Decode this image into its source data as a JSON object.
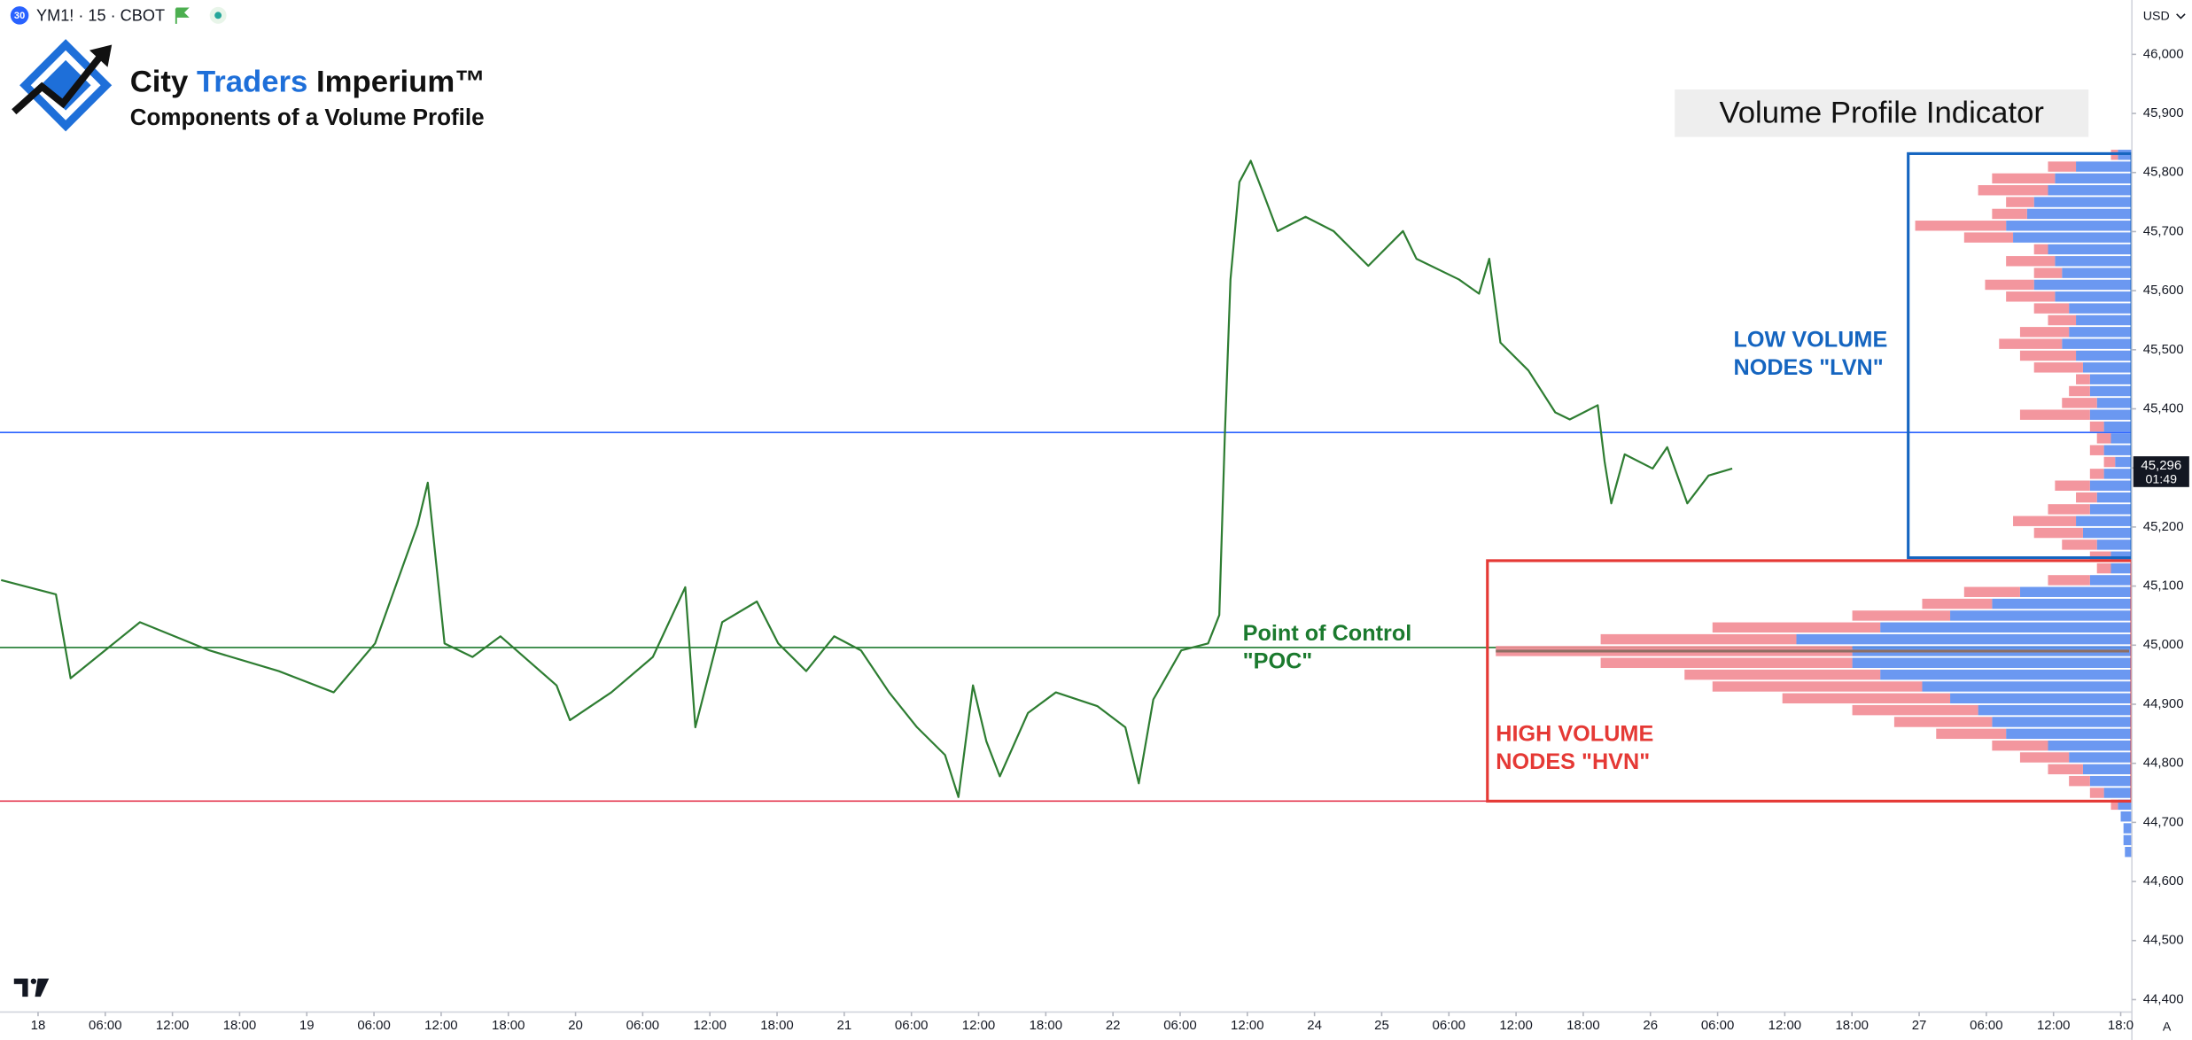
{
  "header": {
    "badge": "30",
    "symbol": "YM1! · 15 · CBOT",
    "brand_city": "City",
    "brand_traders": "Traders",
    "brand_imperium": "Imperium™",
    "subtitle": "Components of a Volume Profile",
    "currency": "USD",
    "scale_mode": "A"
  },
  "chart_data": {
    "type": "line",
    "title": "Volume Profile Indicator",
    "color": "#2e7d32",
    "grid": false,
    "xlim": [
      -3.4,
      187
    ],
    "ylim": [
      44379,
      46092
    ],
    "xticks": [
      {
        "value": 0,
        "label": "18"
      },
      {
        "value": 6,
        "label": "06:00"
      },
      {
        "value": 12,
        "label": "12:00"
      },
      {
        "value": 18,
        "label": "18:00"
      },
      {
        "value": 24,
        "label": "19"
      },
      {
        "value": 30,
        "label": "06:00"
      },
      {
        "value": 36,
        "label": "12:00"
      },
      {
        "value": 42,
        "label": "18:00"
      },
      {
        "value": 48,
        "label": "20"
      },
      {
        "value": 54,
        "label": "06:00"
      },
      {
        "value": 60,
        "label": "12:00"
      },
      {
        "value": 66,
        "label": "18:00"
      },
      {
        "value": 72,
        "label": "21"
      },
      {
        "value": 78,
        "label": "06:00"
      },
      {
        "value": 84,
        "label": "12:00"
      },
      {
        "value": 90,
        "label": "18:00"
      },
      {
        "value": 96,
        "label": "22"
      },
      {
        "value": 102,
        "label": "06:00"
      },
      {
        "value": 108,
        "label": "12:00"
      },
      {
        "value": 114,
        "label": "24"
      },
      {
        "value": 120,
        "label": "25"
      },
      {
        "value": 126,
        "label": "06:00"
      },
      {
        "value": 132,
        "label": "12:00"
      },
      {
        "value": 138,
        "label": "18:00"
      },
      {
        "value": 144,
        "label": "26"
      },
      {
        "value": 150,
        "label": "06:00"
      },
      {
        "value": 156,
        "label": "12:00"
      },
      {
        "value": 162,
        "label": "18:00"
      },
      {
        "value": 168,
        "label": "27"
      },
      {
        "value": 174,
        "label": "06:00"
      },
      {
        "value": 180,
        "label": "12:00"
      },
      {
        "value": 186,
        "label": "18:0"
      }
    ],
    "yticks": [
      {
        "value": 44400,
        "label": "44,400"
      },
      {
        "value": 44500,
        "label": "44,500"
      },
      {
        "value": 44600,
        "label": "44,600"
      },
      {
        "value": 44700,
        "label": "44,700"
      },
      {
        "value": 44800,
        "label": "44,800"
      },
      {
        "value": 44900,
        "label": "44,900"
      },
      {
        "value": 45000,
        "label": "45,000"
      },
      {
        "value": 45100,
        "label": "45,100"
      },
      {
        "value": 45200,
        "label": "45,200"
      },
      {
        "value": 45300,
        "label": "45,300"
      },
      {
        "value": 45400,
        "label": "45,400"
      },
      {
        "value": 45500,
        "label": "45,500"
      },
      {
        "value": 45600,
        "label": "45,600"
      },
      {
        "value": 45700,
        "label": "45,700"
      },
      {
        "value": 45800,
        "label": "45,800"
      },
      {
        "value": 45900,
        "label": "45,900"
      },
      {
        "value": 46000,
        "label": "46,000"
      }
    ],
    "x": [
      -3.3,
      1.6,
      2.9,
      9.1,
      15.3,
      21.5,
      26.4,
      30.1,
      33.9,
      34.8,
      36.3,
      38.8,
      41.3,
      46.3,
      47.5,
      51.2,
      54.9,
      57.8,
      58.7,
      61.1,
      64.2,
      66.1,
      68.6,
      71.1,
      73.5,
      76.0,
      78.5,
      81.0,
      82.2,
      83.5,
      84.7,
      85.9,
      88.4,
      90.9,
      94.6,
      97.1,
      98.3,
      99.6,
      102.1,
      104.5,
      105.5,
      106.0,
      106.5,
      107.3,
      108.3,
      109.5,
      110.7,
      113.2,
      115.7,
      118.8,
      121.9,
      123.1,
      126.9,
      128.7,
      129.6,
      130.6,
      133.1,
      135.5,
      136.8,
      139.3,
      139.9,
      140.5,
      141.7,
      144.2,
      145.5,
      147.3,
      149.2,
      151.3
    ],
    "values": [
      45110,
      45086,
      44944,
      45039,
      44991,
      44956,
      44920,
      45003,
      45204,
      45275,
      45003,
      44980,
      45015,
      44932,
      44873,
      44920,
      44980,
      45098,
      44861,
      45039,
      45074,
      45003,
      44956,
      45015,
      44991,
      44920,
      44861,
      44814,
      44743,
      44932,
      44837,
      44778,
      44885,
      44920,
      44897,
      44861,
      44766,
      44908,
      44991,
      45003,
      45051,
      45358,
      45619,
      45784,
      45820,
      45761,
      45701,
      45725,
      45701,
      45642,
      45701,
      45654,
      45619,
      45595,
      45654,
      45512,
      45465,
      45394,
      45382,
      45406,
      45311,
      45240,
      45323,
      45299,
      45335,
      45240,
      45287,
      45299
    ],
    "last_price": {
      "value": 45296,
      "label": "45,296",
      "countdown": "01:49"
    },
    "levels": [
      {
        "value": 45360,
        "color": "#2962ff"
      },
      {
        "value": 44996,
        "color": "#1b7a2e"
      },
      {
        "value": 44736,
        "color": "#e53950"
      }
    ],
    "boxes": [
      {
        "ylim": [
          45148,
          45832
        ],
        "color": "#1565c0"
      },
      {
        "ylim": [
          44736,
          45143
        ],
        "color": "#e53935"
      }
    ],
    "profile": {
      "levels": [
        45830,
        45810,
        45790,
        45770,
        45750,
        45730,
        45710,
        45690,
        45670,
        45650,
        45630,
        45610,
        45590,
        45570,
        45550,
        45530,
        45510,
        45490,
        45470,
        45450,
        45430,
        45410,
        45390,
        45370,
        45350,
        45330,
        45310,
        45290,
        45270,
        45250,
        45230,
        45210,
        45190,
        45170,
        45150,
        45130,
        45110,
        45090,
        45070,
        45050,
        45030,
        45010,
        44990,
        44970,
        44950,
        44930,
        44910,
        44890,
        44870,
        44850,
        44830,
        44810,
        44790,
        44770,
        44750,
        44730,
        44710,
        44690,
        44670,
        44650
      ],
      "poc_color": "#8d6e63",
      "series": [
        {
          "color": "#5b8def",
          "values": [
            10,
            40,
            55,
            60,
            70,
            75,
            90,
            85,
            60,
            55,
            50,
            70,
            55,
            45,
            40,
            45,
            50,
            40,
            35,
            30,
            30,
            25,
            30,
            20,
            15,
            20,
            12,
            20,
            30,
            25,
            30,
            40,
            35,
            25,
            15,
            15,
            30,
            80,
            100,
            130,
            180,
            240,
            200,
            200,
            180,
            150,
            130,
            110,
            100,
            90,
            60,
            45,
            35,
            30,
            20,
            10,
            8,
            6,
            6,
            5
          ]
        },
        {
          "color": "#f28b93",
          "values": [
            5,
            20,
            45,
            50,
            20,
            25,
            65,
            35,
            10,
            35,
            20,
            35,
            35,
            25,
            20,
            35,
            45,
            40,
            35,
            10,
            15,
            25,
            50,
            10,
            10,
            10,
            8,
            10,
            25,
            15,
            30,
            45,
            35,
            25,
            15,
            10,
            30,
            40,
            50,
            70,
            120,
            140,
            255,
            180,
            140,
            150,
            120,
            90,
            70,
            50,
            40,
            35,
            25,
            15,
            10,
            5,
            0,
            0,
            0,
            0
          ]
        }
      ]
    },
    "annotations": [
      {
        "lines": [
          "LOW VOLUME",
          "NODES \"LVN\""
        ],
        "color": "#1565c0"
      },
      {
        "lines": [
          "Point of Control",
          "\"POC\""
        ],
        "color": "#1b7a2e"
      },
      {
        "lines": [
          "HIGH VOLUME",
          "NODES \"HVN\""
        ],
        "color": "#e53935"
      }
    ]
  }
}
